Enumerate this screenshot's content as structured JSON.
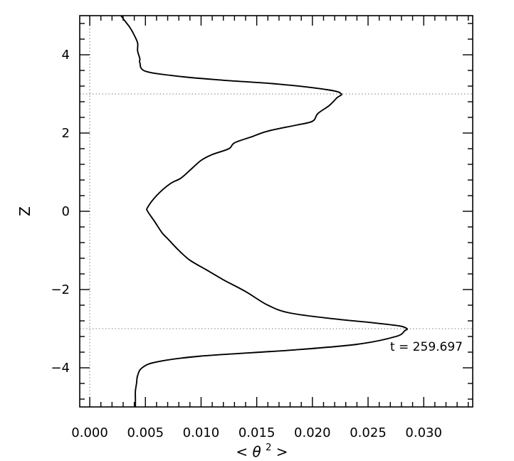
{
  "chart_data": {
    "type": "line",
    "title": "",
    "xlabel_parts": {
      "open": "<",
      "symbol": "θ",
      "sup": "2",
      "close": ">"
    },
    "ylabel": "Z",
    "xlim": [
      -0.0009,
      0.0344
    ],
    "ylim": [
      -5,
      5
    ],
    "x_ticks": [
      0.0,
      0.005,
      0.01,
      0.015,
      0.02,
      0.025,
      0.03
    ],
    "x_tick_labels": [
      "0.000",
      "0.005",
      "0.010",
      "0.015",
      "0.020",
      "0.025",
      "0.030"
    ],
    "x_minor_step": 0.001,
    "y_ticks": [
      -4,
      -2,
      0,
      2,
      4
    ],
    "y_tick_labels": [
      "−4",
      "−2",
      "0",
      "2",
      "4"
    ],
    "y_minor_step": 0.4,
    "reference_lines": {
      "horizontal": [
        3,
        -3
      ],
      "vertical": [
        0.0
      ],
      "style": "dotted"
    },
    "annotation": "t = 259.697",
    "grid": false,
    "legend": "none",
    "line_color": "#000000",
    "ref_line_color": "#999999",
    "series": [
      {
        "points": [
          [
            0.0041,
            -5.0
          ],
          [
            0.0041,
            -4.8
          ],
          [
            0.0041,
            -4.6
          ],
          [
            0.0042,
            -4.4
          ],
          [
            0.0043,
            -4.2
          ],
          [
            0.0047,
            -4.0
          ],
          [
            0.006,
            -3.85
          ],
          [
            0.01,
            -3.7
          ],
          [
            0.018,
            -3.55
          ],
          [
            0.024,
            -3.4
          ],
          [
            0.0275,
            -3.2
          ],
          [
            0.0283,
            -3.05
          ],
          [
            0.0285,
            -3.0
          ],
          [
            0.0278,
            -2.93
          ],
          [
            0.0255,
            -2.85
          ],
          [
            0.022,
            -2.75
          ],
          [
            0.018,
            -2.6
          ],
          [
            0.016,
            -2.4
          ],
          [
            0.014,
            -2.05
          ],
          [
            0.012,
            -1.75
          ],
          [
            0.0105,
            -1.5
          ],
          [
            0.009,
            -1.25
          ],
          [
            0.008,
            -1.0
          ],
          [
            0.007,
            -0.7
          ],
          [
            0.0065,
            -0.55
          ],
          [
            0.0058,
            -0.25
          ],
          [
            0.0052,
            0.0
          ],
          [
            0.0052,
            0.1
          ],
          [
            0.006,
            0.4
          ],
          [
            0.0072,
            0.7
          ],
          [
            0.0082,
            0.85
          ],
          [
            0.0092,
            1.1
          ],
          [
            0.01,
            1.3
          ],
          [
            0.011,
            1.45
          ],
          [
            0.0125,
            1.6
          ],
          [
            0.013,
            1.75
          ],
          [
            0.0145,
            1.9
          ],
          [
            0.016,
            2.05
          ],
          [
            0.0185,
            2.2
          ],
          [
            0.02,
            2.3
          ],
          [
            0.0205,
            2.5
          ],
          [
            0.0215,
            2.7
          ],
          [
            0.0222,
            2.9
          ],
          [
            0.0226,
            3.0
          ],
          [
            0.0215,
            3.1
          ],
          [
            0.017,
            3.25
          ],
          [
            0.012,
            3.35
          ],
          [
            0.008,
            3.45
          ],
          [
            0.005,
            3.58
          ],
          [
            0.0045,
            3.8
          ],
          [
            0.0045,
            3.9
          ],
          [
            0.0043,
            4.1
          ],
          [
            0.0043,
            4.3
          ],
          [
            0.004,
            4.5
          ],
          [
            0.0036,
            4.7
          ],
          [
            0.0032,
            4.85
          ],
          [
            0.0028,
            5.0
          ]
        ]
      }
    ]
  }
}
